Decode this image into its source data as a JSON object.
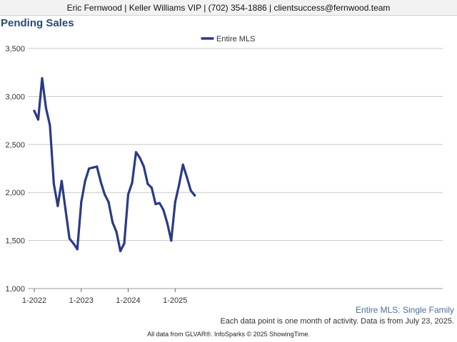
{
  "header": {
    "contact_line": "Eric Fernwood | Keller Williams VIP | (702) 354-1886 | clientsuccess@fernwood.team"
  },
  "footer": {
    "subtitle": "Entire MLS: Single Family",
    "note": "Each data point is one month of activity. Data is from July 23, 2025.",
    "credits": "All data from GLVAR®. InfoSparks © 2025 ShowingTime."
  },
  "colors": {
    "title": "#2a4a6e",
    "series": "#2b3a86",
    "grid": "#c8c8c8",
    "subtitle": "#4a6f9a"
  },
  "chart_data": {
    "type": "line",
    "title": "Pending Sales",
    "xlabel": "",
    "ylabel": "",
    "ylim": [
      1000,
      3500
    ],
    "y_ticks": [
      1000,
      1500,
      2000,
      2500,
      3000,
      3500
    ],
    "y_tick_labels": [
      "1,000",
      "1,500",
      "2,000",
      "2,500",
      "3,000",
      "3,500"
    ],
    "x_ticks": [
      "2022-01",
      "2023-01",
      "2024-01",
      "2025-01"
    ],
    "x_tick_labels": [
      "1-2022",
      "1-2023",
      "1-2024",
      "1-2025"
    ],
    "grid": true,
    "legend_position": "top-center",
    "x": [
      "2022-01",
      "2022-02",
      "2022-03",
      "2022-04",
      "2022-05",
      "2022-06",
      "2022-07",
      "2022-08",
      "2022-09",
      "2022-10",
      "2022-11",
      "2022-12",
      "2023-01",
      "2023-02",
      "2023-03",
      "2023-04",
      "2023-05",
      "2023-06",
      "2023-07",
      "2023-08",
      "2023-09",
      "2023-10",
      "2023-11",
      "2023-12",
      "2024-01",
      "2024-02",
      "2024-03",
      "2024-04",
      "2024-05",
      "2024-06",
      "2024-07",
      "2024-08",
      "2024-09",
      "2024-10",
      "2024-11",
      "2024-12",
      "2025-01",
      "2025-02",
      "2025-03",
      "2025-04",
      "2025-05",
      "2025-06"
    ],
    "series": [
      {
        "name": "Entire MLS",
        "values": [
          2850,
          2760,
          3190,
          2880,
          2700,
          2090,
          1860,
          2120,
          1820,
          1520,
          1470,
          1410,
          1900,
          2120,
          2250,
          2260,
          2270,
          2110,
          1980,
          1900,
          1690,
          1590,
          1390,
          1470,
          1980,
          2100,
          2420,
          2360,
          2270,
          2090,
          2050,
          1880,
          1890,
          1820,
          1680,
          1500,
          1900,
          2080,
          2290,
          2160,
          2020,
          1970
        ]
      }
    ]
  }
}
